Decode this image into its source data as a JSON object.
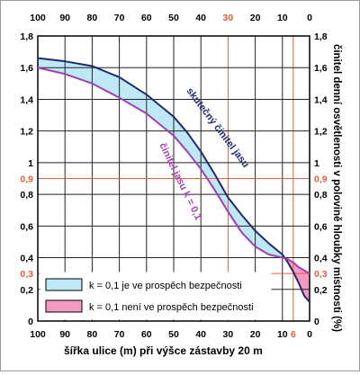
{
  "chart_data": {
    "type": "area",
    "x_top_ticks": [
      "100",
      "90",
      "80",
      "70",
      "60",
      "50",
      "40",
      "30",
      "20",
      "10",
      "0"
    ],
    "x_bottom_ticks": [
      "100",
      "90",
      "80",
      "70",
      "60",
      "50",
      "40",
      "30",
      "20",
      "10",
      "0"
    ],
    "y_ticks": [
      "0",
      "0,2",
      "0,3",
      "0,4",
      "0,6",
      "0,8",
      "0,9",
      "1",
      "1,2",
      "1,4",
      "1,6",
      "1,8"
    ],
    "y_tick_values": [
      0,
      0.2,
      0.3,
      0.4,
      0.6,
      0.8,
      0.9,
      1.0,
      1.2,
      1.4,
      1.6,
      1.8
    ],
    "highlight_y_ticks": [
      "0,3",
      "0,9"
    ],
    "highlight_x_top_ticks": [
      "30"
    ],
    "extra_bottom_tick": "6",
    "xlabel": "šířka ulice (m) při výšce zástavby 20 m",
    "ylabel": "činitel denní osvětlenosti v polovině hloubky místnosti (%)",
    "xlim": [
      100,
      0
    ],
    "ylim": [
      0,
      1.8
    ],
    "grid": true,
    "reference_lines": {
      "x": [
        30,
        6
      ],
      "y": [
        0.3,
        0.9
      ]
    },
    "series": [
      {
        "name": "skutečný činitel jasu",
        "color": "#1f2b6e",
        "x": [
          100,
          90,
          80,
          70,
          60,
          55,
          50,
          45,
          40,
          35,
          30,
          25,
          20,
          15,
          10,
          8,
          6,
          4,
          2,
          0
        ],
        "y": [
          1.66,
          1.64,
          1.61,
          1.54,
          1.43,
          1.36,
          1.29,
          1.19,
          1.07,
          0.93,
          0.78,
          0.67,
          0.57,
          0.49,
          0.42,
          0.37,
          0.31,
          0.24,
          0.16,
          0.12
        ]
      },
      {
        "name": "činitel jasu k = 0,1",
        "color": "#a23fb0",
        "x": [
          100,
          90,
          80,
          70,
          60,
          55,
          50,
          45,
          40,
          35,
          30,
          25,
          20,
          15,
          10,
          8,
          6,
          4,
          2,
          0
        ],
        "y": [
          1.6,
          1.56,
          1.5,
          1.41,
          1.31,
          1.24,
          1.17,
          1.07,
          0.96,
          0.83,
          0.69,
          0.56,
          0.47,
          0.42,
          0.4,
          0.39,
          0.37,
          0.34,
          0.32,
          0.3
        ]
      }
    ],
    "fill_colors": {
      "favorable": "#bfe8f7",
      "unfavorable": "#f39ac3"
    },
    "legend": {
      "placement": "bottom-left",
      "items": [
        {
          "text": "k = 0,1 je ve prospěch bezpečnosti",
          "color": "#bfe8f7"
        },
        {
          "text": "k = 0,1 není ve prospěch bezpečnosti",
          "color": "#f39ac3"
        }
      ]
    },
    "annotations": [
      {
        "text": "skutečný činitel jasu",
        "color": "#1f2b6e"
      },
      {
        "text": "činitel jasu k = 0,1",
        "color": "#a23fb0"
      }
    ]
  },
  "colors": {
    "grid": "#222222",
    "highlight": "#e55d3a",
    "axis": "#000000"
  }
}
